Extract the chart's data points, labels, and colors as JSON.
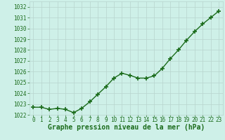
{
  "x": [
    0,
    1,
    2,
    3,
    4,
    5,
    6,
    7,
    8,
    9,
    10,
    11,
    12,
    13,
    14,
    15,
    16,
    17,
    18,
    19,
    20,
    21,
    22,
    23
  ],
  "y": [
    1022.7,
    1022.7,
    1022.5,
    1022.6,
    1022.5,
    1022.2,
    1022.6,
    1023.2,
    1023.9,
    1024.6,
    1025.4,
    1025.85,
    1025.65,
    1025.4,
    1025.4,
    1025.6,
    1026.3,
    1027.2,
    1028.0,
    1028.9,
    1029.7,
    1030.4,
    1031.0,
    1031.6
  ],
  "line_color": "#1a6b1a",
  "marker": "+",
  "markersize": 5,
  "markeredgewidth": 1.2,
  "linewidth": 1.0,
  "bg_color": "#cef0e8",
  "grid_color": "#b8d4ce",
  "xlabel": "Graphe pression niveau de la mer (hPa)",
  "xlabel_fontsize": 7.0,
  "xlabel_color": "#1a6b1a",
  "tick_color": "#1a6b1a",
  "tick_fontsize": 5.5,
  "ytick_fontsize": 5.5,
  "ylim": [
    1022,
    1032.5
  ],
  "xlim": [
    -0.5,
    23.5
  ],
  "yticks": [
    1022,
    1023,
    1024,
    1025,
    1026,
    1027,
    1028,
    1029,
    1030,
    1031,
    1032
  ],
  "xticks": [
    0,
    1,
    2,
    3,
    4,
    5,
    6,
    7,
    8,
    9,
    10,
    11,
    12,
    13,
    14,
    15,
    16,
    17,
    18,
    19,
    20,
    21,
    22,
    23
  ]
}
